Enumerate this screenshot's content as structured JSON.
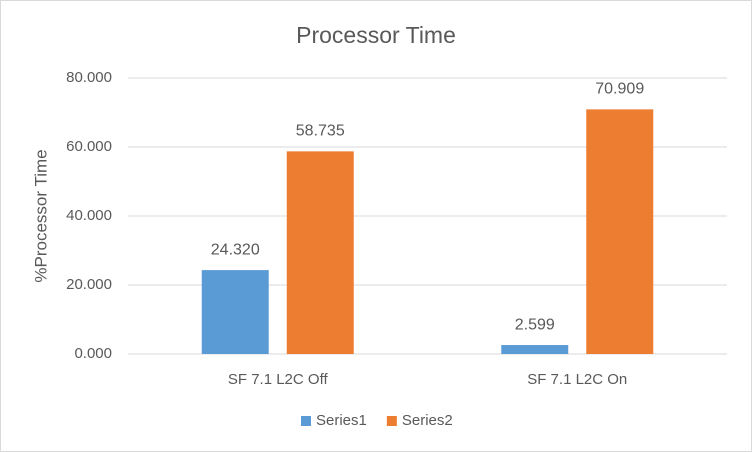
{
  "chart_data": {
    "type": "bar",
    "title": "Processor Time",
    "y_label": "%Processor Time",
    "categories": [
      "SF 7.1 L2C Off",
      "SF 7.1 L2C On"
    ],
    "series": [
      {
        "name": "Series1",
        "color": "#5b9bd5",
        "values": [
          24.32,
          2.599
        ],
        "value_labels": [
          "24.320",
          "2.599"
        ]
      },
      {
        "name": "Series2",
        "color": "#ed7d31",
        "values": [
          58.735,
          70.909
        ],
        "value_labels": [
          "58.735",
          "70.909"
        ]
      }
    ],
    "ylim": [
      0,
      80
    ],
    "yticks": [
      {
        "value": 0,
        "label": "0.000"
      },
      {
        "value": 20,
        "label": "20.000"
      },
      {
        "value": 40,
        "label": "40.000"
      },
      {
        "value": 60,
        "label": "60.000"
      },
      {
        "value": 80,
        "label": "80.000"
      }
    ],
    "grid": true,
    "legend": "bottom"
  }
}
